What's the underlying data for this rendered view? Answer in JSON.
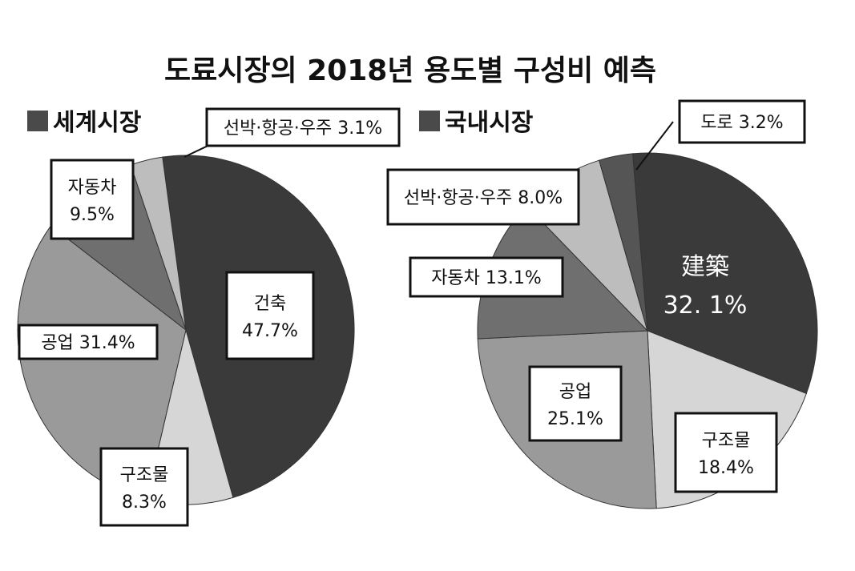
{
  "chart_data": {
    "title": "도료시장의 2018년 용도별 구성비 예측",
    "charts": [
      {
        "type": "pie",
        "legend": "세계시장",
        "unit": "%",
        "slices": [
          {
            "label": "건축",
            "value": 47.7,
            "display": "47.7%",
            "color": "#3a3a3a"
          },
          {
            "label": "구조물",
            "value": 8.3,
            "display": "8.3%",
            "color": "#d6d6d6"
          },
          {
            "label": "공업",
            "value": 31.4,
            "display": "31.4%",
            "color": "#9a9a9a"
          },
          {
            "label": "자동차",
            "value": 9.5,
            "display": "9.5%",
            "color": "#6f6f6f"
          },
          {
            "label": "선박·항공·우주",
            "value": 3.1,
            "display": "3.1%",
            "color": "#bdbdbd"
          }
        ]
      },
      {
        "type": "pie",
        "legend": "국내시장",
        "unit": "%",
        "slices": [
          {
            "label": "建築",
            "value": 32.1,
            "display": "32. 1%",
            "color": "#3a3a3a"
          },
          {
            "label": "구조물",
            "value": 18.4,
            "display": "18.4%",
            "color": "#d6d6d6"
          },
          {
            "label": "공업",
            "value": 25.1,
            "display": "25.1%",
            "color": "#9a9a9a"
          },
          {
            "label": "자동차",
            "value": 13.1,
            "display": "13.1%",
            "color": "#6f6f6f"
          },
          {
            "label": "선박·항공·우주",
            "value": 8.0,
            "display": "8.0%",
            "color": "#bdbdbd"
          },
          {
            "label": "도로",
            "value": 3.2,
            "display": "3.2%",
            "color": "#555555"
          }
        ]
      }
    ]
  }
}
